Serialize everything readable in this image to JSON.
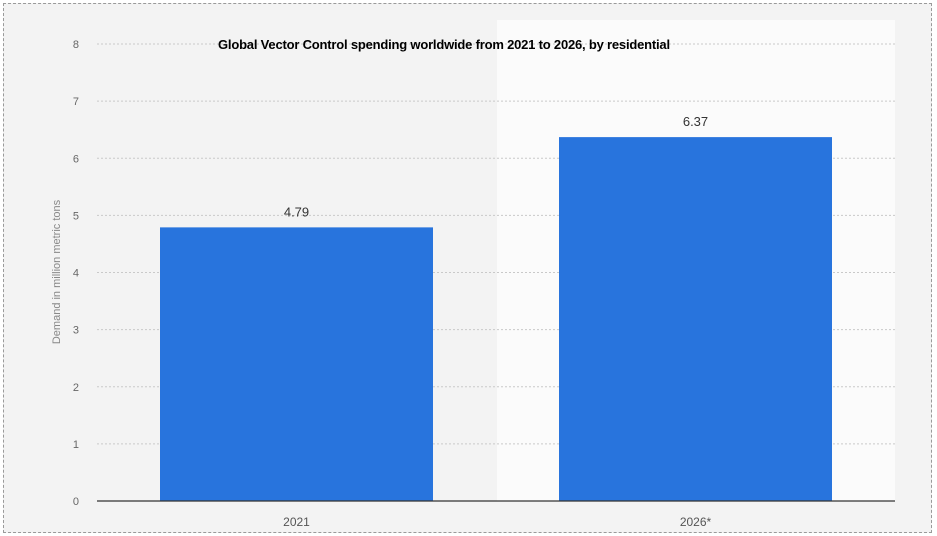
{
  "chart_data": {
    "type": "bar",
    "title": "Global Vector Control spending worldwide from 2021 to 2026, by residential",
    "xlabel": "",
    "ylabel": "Demand in million metric tons",
    "categories": [
      "2021",
      "2026*"
    ],
    "values": [
      4.79,
      6.37
    ],
    "value_labels": [
      "4.79",
      "6.37"
    ],
    "ylim": [
      0,
      8
    ],
    "yticks": [
      0,
      1,
      2,
      3,
      4,
      5,
      6,
      7,
      8
    ],
    "grid": true,
    "bar_color": "#2874dd",
    "grid_color": "#c9c9c9"
  }
}
